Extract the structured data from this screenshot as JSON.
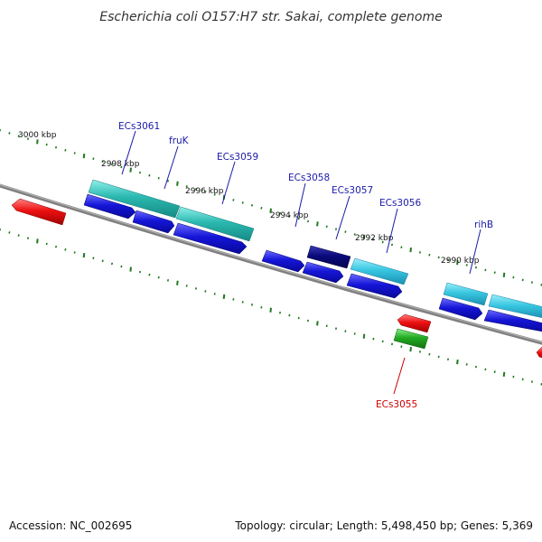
{
  "title": "Escherichia coli O157:H7 str. Sakai, complete genome",
  "footer": {
    "accession": "Accession: NC_002695",
    "summary": "Topology: circular; Length: 5,498,450 bp; Genes: 5,369"
  },
  "colors": {
    "backbone": "#808080",
    "tick": "#1f7a1f",
    "label_blue": "#1a1aa8",
    "label_red": "#cc0000"
  },
  "ticks": {
    "labels": [
      {
        "text": "3000 kbp"
      },
      {
        "text": "2998 kbp"
      },
      {
        "text": "2996 kbp"
      },
      {
        "text": "2994 kbp"
      },
      {
        "text": "2992 kbp"
      },
      {
        "text": "2990 kbp"
      }
    ]
  },
  "gene_labels": [
    {
      "text": "ECs3061",
      "color": "blue"
    },
    {
      "text": "fruK",
      "color": "blue"
    },
    {
      "text": "ECs3059",
      "color": "blue"
    },
    {
      "text": "ECs3058",
      "color": "blue"
    },
    {
      "text": "ECs3057",
      "color": "blue"
    },
    {
      "text": "ECs3056",
      "color": "blue"
    },
    {
      "text": "rihB",
      "color": "blue"
    },
    {
      "text": "ECs3055",
      "color": "red"
    }
  ],
  "features": [
    {
      "name": "cyan-feature",
      "color": "#38c6e0"
    },
    {
      "name": "teal-feature",
      "color": "#2ab8b0"
    },
    {
      "name": "blue-cds",
      "color": "#1515d8"
    },
    {
      "name": "navy-cds",
      "color": "#0a0a7a"
    },
    {
      "name": "red-feature",
      "color": "#ee1111"
    },
    {
      "name": "green-feature",
      "color": "#22aa22"
    }
  ]
}
